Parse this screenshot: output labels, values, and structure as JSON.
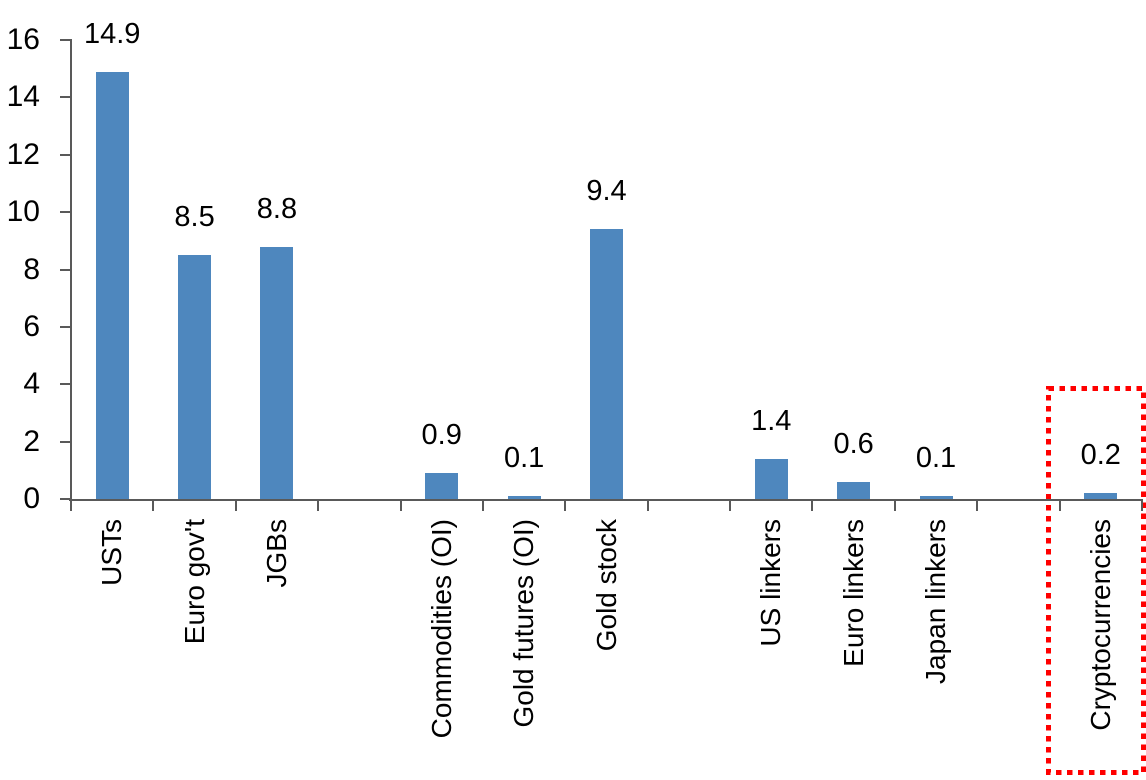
{
  "chart_data": {
    "type": "bar",
    "title": "",
    "xlabel": "",
    "ylabel": "",
    "categories": [
      "USTs",
      "Euro gov't",
      "JGBs",
      "Commodities (OI)",
      "Gold futures (OI)",
      "Gold stock",
      "US linkers",
      "Euro linkers",
      "Japan linkers",
      "Cryptocurrencies"
    ],
    "values": [
      14.9,
      8.5,
      8.8,
      0.9,
      0.1,
      9.4,
      1.4,
      0.6,
      0.1,
      0.2
    ],
    "value_labels": [
      "14.9",
      "8.5",
      "8.8",
      "0.9",
      "0.1",
      "9.4",
      "1.4",
      "0.6",
      "0.1",
      "0.2"
    ],
    "slot_indices": [
      0,
      1,
      2,
      4,
      5,
      6,
      8,
      9,
      10,
      12
    ],
    "total_slots": 13,
    "y_ticks": [
      "16",
      "14",
      "12",
      "10",
      "8",
      "6",
      "4",
      "2",
      "0"
    ],
    "y_tick_values": [
      16,
      14,
      12,
      10,
      8,
      6,
      4,
      2,
      0
    ],
    "ylim": [
      0,
      16
    ],
    "grid": "off",
    "legend": "none",
    "bar_color": "#4E87BE",
    "axis_color": "#595959",
    "text_color": "#000000",
    "highlight": {
      "category": "Cryptocurrencies",
      "value_label": "0.2",
      "box_color": "#FF0000",
      "style": "dotted-box"
    }
  }
}
